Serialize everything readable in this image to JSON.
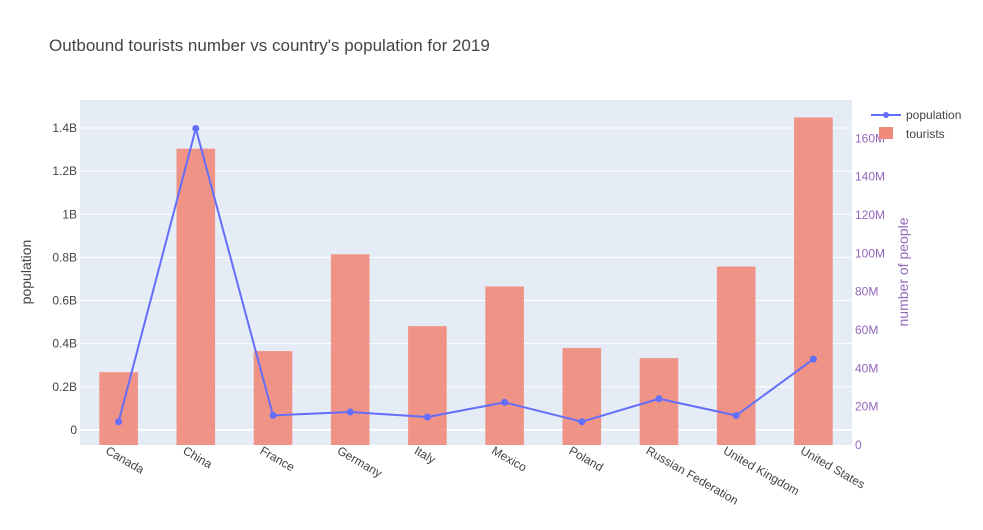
{
  "chart_data": {
    "type": "bar+line",
    "title": "Outbound tourists number vs country's population for 2019",
    "categories": [
      "Canada",
      "China",
      "France",
      "Germany",
      "Italy",
      "Mexico",
      "Poland",
      "Russian Federation",
      "United Kingdom",
      "United States"
    ],
    "series": [
      {
        "name": "population",
        "type": "line",
        "axis": "left",
        "color": "#636efa",
        "values": [
          37600000,
          1398000000,
          67200000,
          83100000,
          59700000,
          127600000,
          38000000,
          144400000,
          66800000,
          328300000
        ]
      },
      {
        "name": "tourists",
        "type": "bar",
        "axis": "right",
        "color": "#ef8a7b",
        "values": [
          38000000,
          154600000,
          49000000,
          99500000,
          62000000,
          82700000,
          50600000,
          45300000,
          93100000,
          170900000
        ]
      }
    ],
    "left_axis": {
      "title": "population",
      "range": [
        -70000000,
        1530000000
      ],
      "ticks": [
        0,
        200000000,
        400000000,
        600000000,
        800000000,
        1000000000,
        1200000000,
        1400000000
      ],
      "tick_labels": [
        "0",
        "0.2B",
        "0.4B",
        "0.6B",
        "0.8B",
        "1B",
        "1.2B",
        "1.4B"
      ]
    },
    "right_axis": {
      "title": "number of people",
      "range": [
        0,
        180000000
      ],
      "ticks": [
        0,
        20000000,
        40000000,
        60000000,
        80000000,
        100000000,
        120000000,
        140000000,
        160000000
      ],
      "tick_labels": [
        "0",
        "20M",
        "40M",
        "60M",
        "80M",
        "100M",
        "120M",
        "140M",
        "160M"
      ],
      "color": "#9467bd"
    },
    "grid": true,
    "legend": "top-right",
    "background": "#e5ecf6"
  }
}
